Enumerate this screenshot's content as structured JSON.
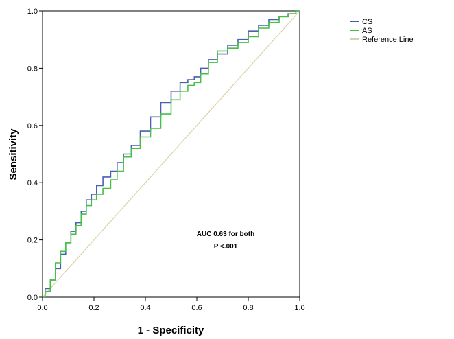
{
  "chart_data": {
    "type": "line",
    "title": "",
    "xlabel": "1 - Specificity",
    "ylabel": "Sensitivity",
    "xlim": [
      0,
      1
    ],
    "ylim": [
      0,
      1
    ],
    "xticks": [
      "0.0",
      "0.2",
      "0.4",
      "0.6",
      "0.8",
      "1.0"
    ],
    "yticks": [
      "0.0",
      "0.2",
      "0.4",
      "0.6",
      "0.8",
      "1.0"
    ],
    "grid": false,
    "legend_position": "right",
    "annotations": [
      "AUC 0.63 for both",
      "P <.001"
    ],
    "series": [
      {
        "name": "CS",
        "color": "#4b5fb3",
        "x": [
          0.0,
          0.02,
          0.04,
          0.06,
          0.08,
          0.1,
          0.12,
          0.14,
          0.16,
          0.18,
          0.2,
          0.22,
          0.25,
          0.28,
          0.3,
          0.33,
          0.36,
          0.4,
          0.44,
          0.48,
          0.52,
          0.55,
          0.58,
          0.6,
          0.63,
          0.66,
          0.7,
          0.74,
          0.78,
          0.82,
          0.86,
          0.9,
          0.94,
          0.97,
          1.0
        ],
        "y": [
          0.0,
          0.03,
          0.06,
          0.1,
          0.15,
          0.19,
          0.23,
          0.26,
          0.3,
          0.34,
          0.36,
          0.39,
          0.42,
          0.44,
          0.47,
          0.5,
          0.53,
          0.58,
          0.63,
          0.68,
          0.72,
          0.75,
          0.76,
          0.77,
          0.8,
          0.83,
          0.85,
          0.88,
          0.9,
          0.93,
          0.95,
          0.97,
          0.98,
          0.99,
          1.0
        ]
      },
      {
        "name": "AS",
        "color": "#44c044",
        "x": [
          0.0,
          0.02,
          0.04,
          0.06,
          0.08,
          0.1,
          0.12,
          0.14,
          0.16,
          0.18,
          0.2,
          0.22,
          0.25,
          0.28,
          0.3,
          0.33,
          0.36,
          0.4,
          0.44,
          0.48,
          0.52,
          0.55,
          0.58,
          0.6,
          0.63,
          0.66,
          0.7,
          0.74,
          0.78,
          0.82,
          0.86,
          0.9,
          0.94,
          0.97,
          1.0
        ],
        "y": [
          0.0,
          0.02,
          0.06,
          0.12,
          0.16,
          0.19,
          0.22,
          0.25,
          0.29,
          0.32,
          0.34,
          0.36,
          0.38,
          0.41,
          0.44,
          0.49,
          0.52,
          0.56,
          0.59,
          0.64,
          0.69,
          0.72,
          0.74,
          0.75,
          0.78,
          0.82,
          0.86,
          0.87,
          0.89,
          0.91,
          0.94,
          0.96,
          0.98,
          0.99,
          1.0
        ]
      },
      {
        "name": "Reference Line",
        "color": "#d9d2a6",
        "x": [
          0.0,
          1.0
        ],
        "y": [
          0.0,
          1.0
        ]
      }
    ]
  }
}
